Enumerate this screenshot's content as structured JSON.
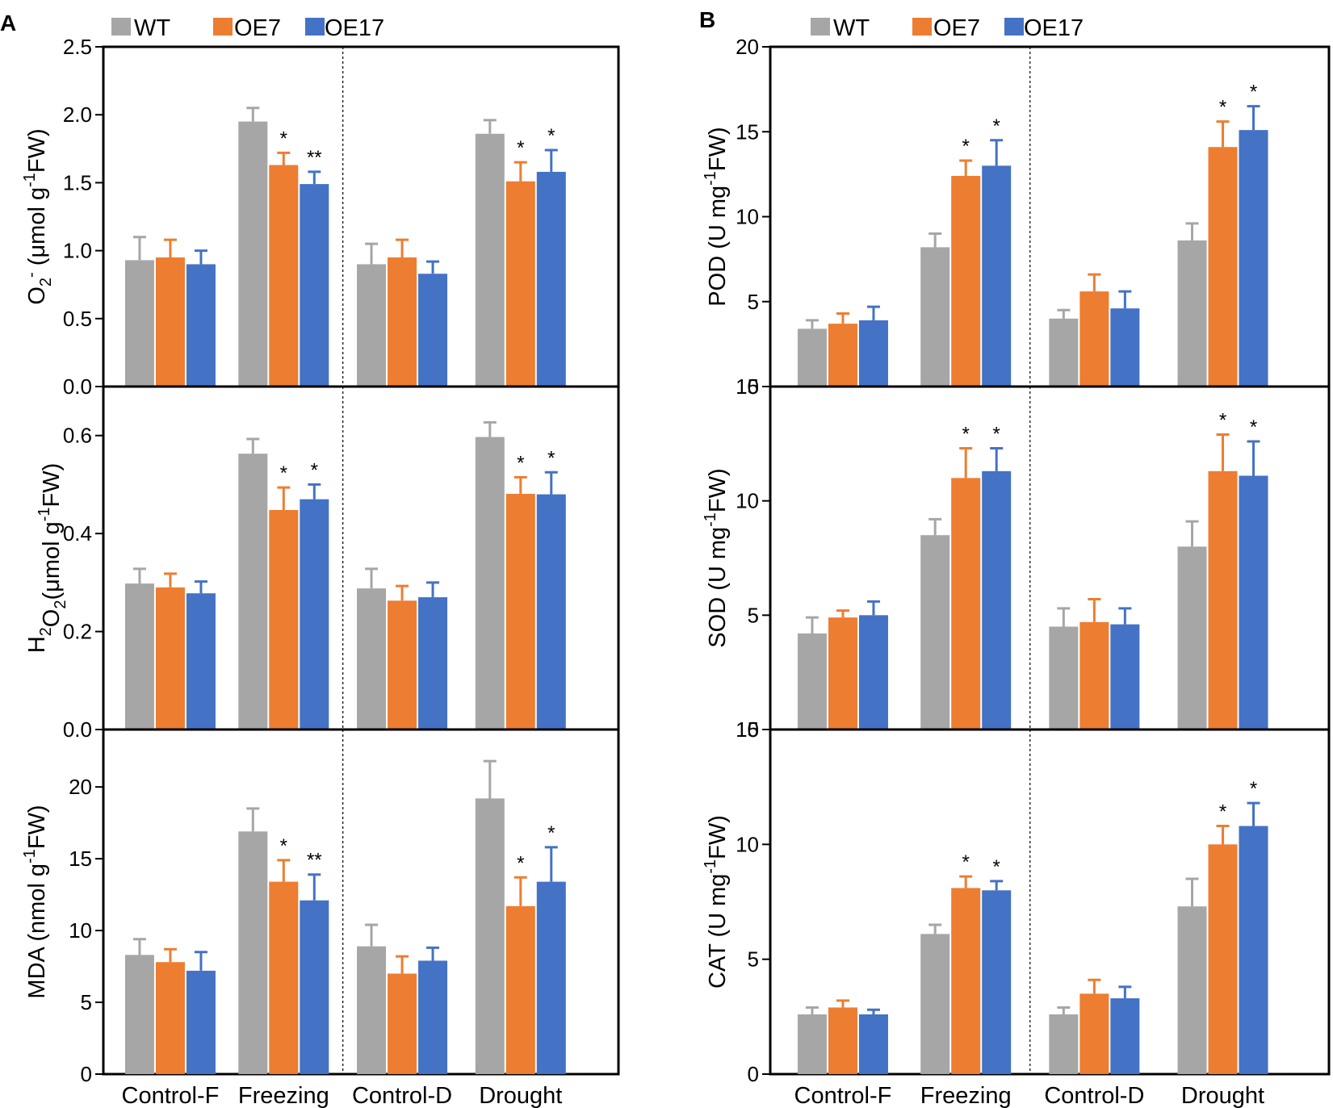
{
  "colors": {
    "WT": "#a6a6a6",
    "OE7": "#ed7d31",
    "OE17": "#4472c4",
    "axis": "#000000"
  },
  "panels": [
    {
      "letter": "A",
      "legend": [
        "WT",
        "OE7",
        "OE17"
      ]
    },
    {
      "letter": "B",
      "legend": [
        "WT",
        "OE7",
        "OE17"
      ]
    }
  ],
  "chart_data": [
    {
      "type": "bar",
      "panel": "A",
      "row": 1,
      "ylabel": {
        "pre": "O",
        "sub": "2",
        "sup": "-",
        "mid": " (μmol g",
        "sup2": "-1",
        "post": "FW)"
      },
      "ylim": [
        0,
        2.5
      ],
      "yticks": [
        "0.0",
        "0.5",
        "1.0",
        "1.5",
        "2.0",
        "2.5"
      ],
      "categories": [
        "Control-F",
        "Freezing",
        "Control-D",
        "Drought"
      ],
      "series": [
        {
          "name": "WT",
          "values": [
            0.93,
            1.95,
            0.9,
            1.86
          ],
          "errors": [
            0.17,
            0.1,
            0.15,
            0.1
          ],
          "sig": [
            "",
            "",
            "",
            ""
          ]
        },
        {
          "name": "OE7",
          "values": [
            0.95,
            1.63,
            0.95,
            1.51
          ],
          "errors": [
            0.13,
            0.09,
            0.13,
            0.14
          ],
          "sig": [
            "",
            "*",
            "",
            "*"
          ]
        },
        {
          "name": "OE17",
          "values": [
            0.9,
            1.49,
            0.83,
            1.58
          ],
          "errors": [
            0.1,
            0.09,
            0.09,
            0.16
          ],
          "sig": [
            "",
            "**",
            "",
            "*"
          ]
        }
      ]
    },
    {
      "type": "bar",
      "panel": "A",
      "row": 2,
      "ylabel": {
        "pre": "H",
        "sub": "2",
        "mid1": "O",
        "sub2": "2",
        "mid": "(μmol g",
        "sup2": "-1",
        "post": "FW)"
      },
      "ylim": [
        0,
        0.7
      ],
      "yticks": [
        "0.0",
        "0.2",
        "0.4",
        "0.6"
      ],
      "categories": [
        "Control-F",
        "Freezing",
        "Control-D",
        "Drought"
      ],
      "series": [
        {
          "name": "WT",
          "values": [
            0.298,
            0.563,
            0.288,
            0.597
          ],
          "errors": [
            0.03,
            0.03,
            0.04,
            0.03
          ],
          "sig": [
            "",
            "",
            "",
            ""
          ]
        },
        {
          "name": "OE7",
          "values": [
            0.29,
            0.448,
            0.263,
            0.481
          ],
          "errors": [
            0.028,
            0.046,
            0.03,
            0.034
          ],
          "sig": [
            "",
            "*",
            "",
            "*"
          ]
        },
        {
          "name": "OE17",
          "values": [
            0.278,
            0.47,
            0.27,
            0.48
          ],
          "errors": [
            0.024,
            0.03,
            0.03,
            0.045
          ],
          "sig": [
            "",
            "*",
            "",
            "*"
          ]
        }
      ]
    },
    {
      "type": "bar",
      "panel": "A",
      "row": 3,
      "ylabel": {
        "pre": "MDA (nmol g",
        "sup2": "-1",
        "post": "FW)"
      },
      "ylim": [
        0,
        24
      ],
      "yticks": [
        "0",
        "5",
        "10",
        "15",
        "20"
      ],
      "categories": [
        "Control-F",
        "Freezing",
        "Control-D",
        "Drought"
      ],
      "series": [
        {
          "name": "WT",
          "values": [
            8.3,
            16.9,
            8.9,
            19.2
          ],
          "errors": [
            1.1,
            1.6,
            1.5,
            2.6
          ],
          "sig": [
            "",
            "",
            "",
            ""
          ]
        },
        {
          "name": "OE7",
          "values": [
            7.8,
            13.4,
            7.0,
            11.7
          ],
          "errors": [
            0.9,
            1.5,
            1.2,
            2.0
          ],
          "sig": [
            "",
            "*",
            "",
            "*"
          ]
        },
        {
          "name": "OE17",
          "values": [
            7.2,
            12.1,
            7.9,
            13.4
          ],
          "errors": [
            1.3,
            1.8,
            0.9,
            2.4
          ],
          "sig": [
            "",
            "**",
            "",
            "*"
          ]
        }
      ]
    },
    {
      "type": "bar",
      "panel": "B",
      "row": 1,
      "ylabel": {
        "pre": "POD (U mg",
        "sup2": "-1",
        "post": "FW)"
      },
      "ylim": [
        0,
        20
      ],
      "yticks": [
        "0",
        "5",
        "10",
        "15",
        "20"
      ],
      "categories": [
        "Control-F",
        "Freezing",
        "Control-D",
        "Drought"
      ],
      "series": [
        {
          "name": "WT",
          "values": [
            3.4,
            8.2,
            4.0,
            8.6
          ],
          "errors": [
            0.5,
            0.8,
            0.5,
            1.0
          ],
          "sig": [
            "",
            "",
            "",
            ""
          ]
        },
        {
          "name": "OE7",
          "values": [
            3.7,
            12.4,
            5.6,
            14.1
          ],
          "errors": [
            0.6,
            0.9,
            1.0,
            1.5
          ],
          "sig": [
            "",
            "*",
            "",
            "*"
          ]
        },
        {
          "name": "OE17",
          "values": [
            3.9,
            13.0,
            4.6,
            15.1
          ],
          "errors": [
            0.8,
            1.5,
            1.0,
            1.4
          ],
          "sig": [
            "",
            "*",
            "",
            "*"
          ]
        }
      ]
    },
    {
      "type": "bar",
      "panel": "B",
      "row": 2,
      "ylabel": {
        "pre": "SOD (U mg",
        "sup2": "-1",
        "post": "FW)"
      },
      "ylim": [
        0,
        15
      ],
      "yticks": [
        "0",
        "5",
        "10",
        "15"
      ],
      "categories": [
        "Control-F",
        "Freezing",
        "Control-D",
        "Drought"
      ],
      "series": [
        {
          "name": "WT",
          "values": [
            4.2,
            8.5,
            4.5,
            8.0
          ],
          "errors": [
            0.7,
            0.7,
            0.8,
            1.1
          ],
          "sig": [
            "",
            "",
            "",
            ""
          ]
        },
        {
          "name": "OE7",
          "values": [
            4.9,
            11.0,
            4.7,
            11.3
          ],
          "errors": [
            0.3,
            1.3,
            1.0,
            1.6
          ],
          "sig": [
            "",
            "*",
            "",
            "*"
          ]
        },
        {
          "name": "OE17",
          "values": [
            5.0,
            11.3,
            4.6,
            11.1
          ],
          "errors": [
            0.6,
            1.0,
            0.7,
            1.5
          ],
          "sig": [
            "",
            "*",
            "",
            "*"
          ]
        }
      ]
    },
    {
      "type": "bar",
      "panel": "B",
      "row": 3,
      "ylabel": {
        "pre": "CAT (U mg",
        "sup2": "-1",
        "post": "FW)"
      },
      "ylim": [
        0,
        15
      ],
      "yticks": [
        "0",
        "5",
        "10",
        "15"
      ],
      "categories": [
        "Control-F",
        "Freezing",
        "Control-D",
        "Drought"
      ],
      "series": [
        {
          "name": "WT",
          "values": [
            2.6,
            6.1,
            2.6,
            7.3
          ],
          "errors": [
            0.3,
            0.4,
            0.3,
            1.2
          ],
          "sig": [
            "",
            "",
            "",
            ""
          ]
        },
        {
          "name": "OE7",
          "values": [
            2.9,
            8.1,
            3.5,
            10.0
          ],
          "errors": [
            0.3,
            0.5,
            0.6,
            0.8
          ],
          "sig": [
            "",
            "*",
            "",
            "*"
          ]
        },
        {
          "name": "OE17",
          "values": [
            2.6,
            8.0,
            3.3,
            10.8
          ],
          "errors": [
            0.2,
            0.4,
            0.5,
            1.0
          ],
          "sig": [
            "",
            "*",
            "",
            "*"
          ]
        }
      ]
    }
  ]
}
